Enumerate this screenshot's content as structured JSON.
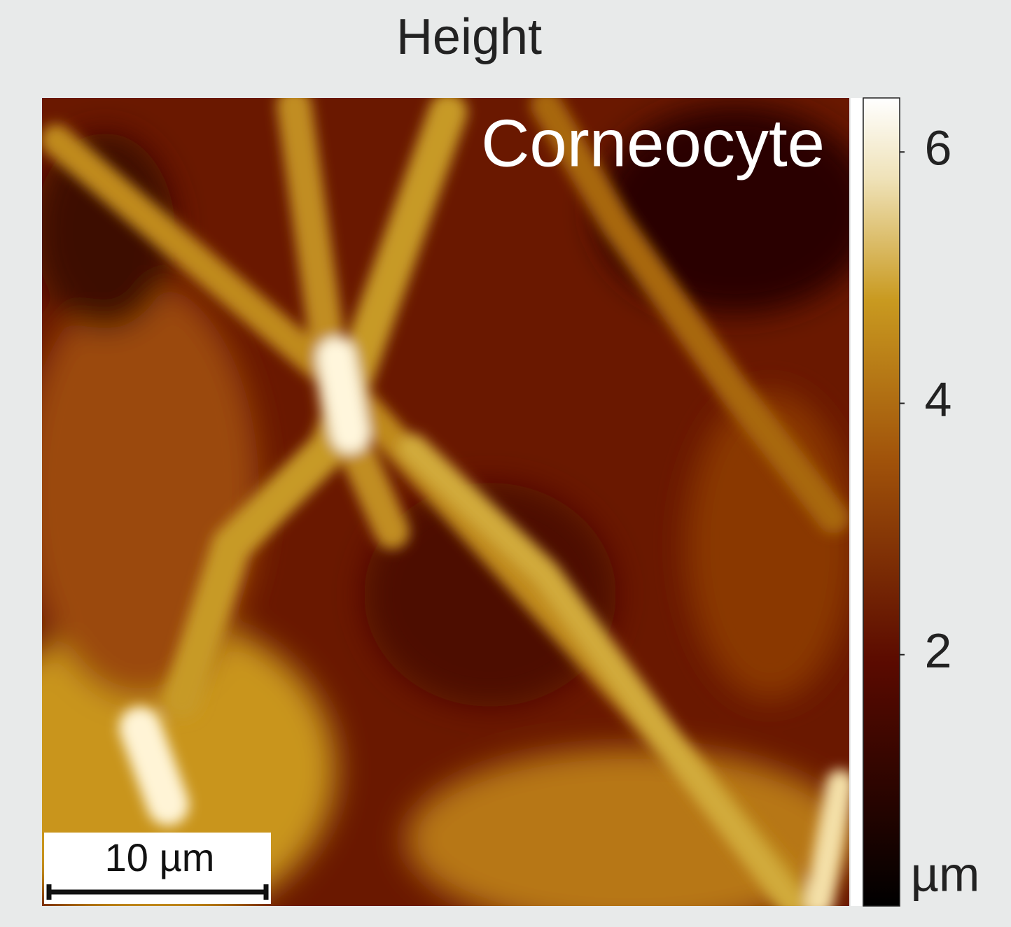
{
  "title": "Height",
  "image": {
    "label": "Corneocyte",
    "scale_bar": "10 µm"
  },
  "colorbar": {
    "lim": [
      0,
      6.43
    ],
    "ticks": [
      2,
      4,
      6
    ],
    "unit": "µm"
  }
}
